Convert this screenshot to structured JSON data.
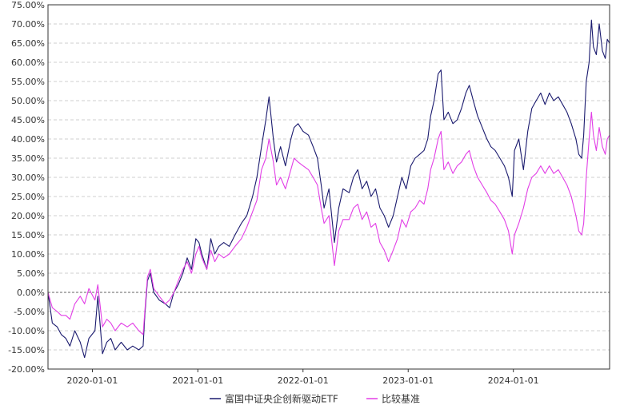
{
  "chart_data": {
    "type": "line",
    "title": "",
    "xlabel": "",
    "ylabel": "",
    "x_range": [
      "2019-07-31",
      "2024-11-30"
    ],
    "ylim": [
      -20,
      75
    ],
    "y_ticks": [
      -20,
      -15,
      -10,
      -5,
      0,
      5,
      10,
      15,
      20,
      25,
      30,
      35,
      40,
      45,
      50,
      55,
      60,
      65,
      70,
      75
    ],
    "y_tick_labels": [
      "-20.00%",
      "-15.00%",
      "-10.00%",
      "-5.00%",
      "0.00%",
      "5.00%",
      "10.00%",
      "15.00%",
      "20.00%",
      "25.00%",
      "30.00%",
      "35.00%",
      "40.00%",
      "45.00%",
      "50.00%",
      "55.00%",
      "60.00%",
      "65.00%",
      "70.00%",
      "75.00%"
    ],
    "x_ticks": [
      "2020-01-01",
      "2021-01-01",
      "2022-01-01",
      "2023-01-01",
      "2024-01-01"
    ],
    "grid": true,
    "legend_position": "bottom-center",
    "series": [
      {
        "name": "富国中证央企创新驱动ETF",
        "color": "#1a1a6e",
        "points": [
          [
            "2019-07-31",
            0
          ],
          [
            "2019-08-15",
            -8
          ],
          [
            "2019-09-01",
            -9
          ],
          [
            "2019-09-15",
            -11
          ],
          [
            "2019-10-01",
            -12
          ],
          [
            "2019-10-15",
            -14
          ],
          [
            "2019-11-01",
            -10
          ],
          [
            "2019-11-20",
            -13
          ],
          [
            "2019-12-05",
            -17
          ],
          [
            "2019-12-20",
            -12
          ],
          [
            "2020-01-10",
            -10
          ],
          [
            "2020-01-20",
            -1
          ],
          [
            "2020-02-05",
            -16
          ],
          [
            "2020-02-20",
            -13
          ],
          [
            "2020-03-05",
            -12
          ],
          [
            "2020-03-20",
            -15
          ],
          [
            "2020-04-10",
            -13
          ],
          [
            "2020-05-01",
            -15
          ],
          [
            "2020-05-20",
            -14
          ],
          [
            "2020-06-10",
            -15
          ],
          [
            "2020-06-25",
            -14
          ],
          [
            "2020-07-01",
            -6
          ],
          [
            "2020-07-10",
            3
          ],
          [
            "2020-07-20",
            5
          ],
          [
            "2020-08-01",
            0
          ],
          [
            "2020-08-20",
            -2
          ],
          [
            "2020-09-10",
            -3
          ],
          [
            "2020-09-25",
            -4
          ],
          [
            "2020-10-10",
            0
          ],
          [
            "2020-10-25",
            2
          ],
          [
            "2020-11-10",
            5
          ],
          [
            "2020-11-25",
            9
          ],
          [
            "2020-12-10",
            6
          ],
          [
            "2020-12-25",
            14
          ],
          [
            "2021-01-05",
            13
          ],
          [
            "2021-01-15",
            10
          ],
          [
            "2021-02-01",
            6
          ],
          [
            "2021-02-15",
            14
          ],
          [
            "2021-03-01",
            10
          ],
          [
            "2021-03-15",
            12
          ],
          [
            "2021-04-01",
            13
          ],
          [
            "2021-04-20",
            12
          ],
          [
            "2021-05-10",
            15
          ],
          [
            "2021-06-01",
            18
          ],
          [
            "2021-06-20",
            20
          ],
          [
            "2021-07-10",
            25
          ],
          [
            "2021-07-25",
            30
          ],
          [
            "2021-08-10",
            38
          ],
          [
            "2021-08-25",
            45
          ],
          [
            "2021-09-05",
            51
          ],
          [
            "2021-09-20",
            40
          ],
          [
            "2021-10-01",
            34
          ],
          [
            "2021-10-15",
            38
          ],
          [
            "2021-11-01",
            33
          ],
          [
            "2021-11-20",
            40
          ],
          [
            "2021-12-01",
            43
          ],
          [
            "2021-12-15",
            44
          ],
          [
            "2022-01-01",
            42
          ],
          [
            "2022-01-20",
            41
          ],
          [
            "2022-02-05",
            38
          ],
          [
            "2022-02-20",
            35
          ],
          [
            "2022-03-05",
            28
          ],
          [
            "2022-03-15",
            22
          ],
          [
            "2022-04-01",
            27
          ],
          [
            "2022-04-20",
            13
          ],
          [
            "2022-05-05",
            22
          ],
          [
            "2022-05-20",
            27
          ],
          [
            "2022-06-10",
            26
          ],
          [
            "2022-06-25",
            30
          ],
          [
            "2022-07-10",
            32
          ],
          [
            "2022-07-25",
            27
          ],
          [
            "2022-08-10",
            29
          ],
          [
            "2022-08-25",
            25
          ],
          [
            "2022-09-10",
            27
          ],
          [
            "2022-09-25",
            22
          ],
          [
            "2022-10-10",
            20
          ],
          [
            "2022-10-25",
            17
          ],
          [
            "2022-11-10",
            20
          ],
          [
            "2022-11-25",
            25
          ],
          [
            "2022-12-10",
            30
          ],
          [
            "2022-12-25",
            27
          ],
          [
            "2023-01-10",
            33
          ],
          [
            "2023-01-25",
            35
          ],
          [
            "2023-02-10",
            36
          ],
          [
            "2023-02-25",
            37
          ],
          [
            "2023-03-10",
            40
          ],
          [
            "2023-03-20",
            46
          ],
          [
            "2023-04-01",
            50
          ],
          [
            "2023-04-15",
            57
          ],
          [
            "2023-04-25",
            58
          ],
          [
            "2023-05-05",
            45
          ],
          [
            "2023-05-20",
            47
          ],
          [
            "2023-06-05",
            44
          ],
          [
            "2023-06-20",
            45
          ],
          [
            "2023-07-05",
            48
          ],
          [
            "2023-07-20",
            52
          ],
          [
            "2023-08-01",
            54
          ],
          [
            "2023-08-15",
            50
          ],
          [
            "2023-08-30",
            46
          ],
          [
            "2023-09-15",
            43
          ],
          [
            "2023-10-01",
            40
          ],
          [
            "2023-10-15",
            38
          ],
          [
            "2023-10-30",
            37
          ],
          [
            "2023-11-15",
            35
          ],
          [
            "2023-12-01",
            33
          ],
          [
            "2023-12-15",
            30
          ],
          [
            "2023-12-28",
            25
          ],
          [
            "2024-01-05",
            37
          ],
          [
            "2024-01-20",
            40
          ],
          [
            "2024-02-05",
            32
          ],
          [
            "2024-02-20",
            42
          ],
          [
            "2024-03-05",
            48
          ],
          [
            "2024-03-20",
            50
          ],
          [
            "2024-04-05",
            52
          ],
          [
            "2024-04-20",
            49
          ],
          [
            "2024-05-05",
            52
          ],
          [
            "2024-05-20",
            50
          ],
          [
            "2024-06-05",
            51
          ],
          [
            "2024-06-20",
            49
          ],
          [
            "2024-07-05",
            47
          ],
          [
            "2024-07-20",
            44
          ],
          [
            "2024-08-05",
            40
          ],
          [
            "2024-08-15",
            36
          ],
          [
            "2024-08-25",
            35
          ],
          [
            "2024-09-01",
            41
          ],
          [
            "2024-09-10",
            55
          ],
          [
            "2024-09-20",
            60
          ],
          [
            "2024-09-28",
            71
          ],
          [
            "2024-10-05",
            64
          ],
          [
            "2024-10-15",
            62
          ],
          [
            "2024-10-25",
            70
          ],
          [
            "2024-11-05",
            63
          ],
          [
            "2024-11-15",
            61
          ],
          [
            "2024-11-22",
            66
          ],
          [
            "2024-11-30",
            65
          ]
        ]
      },
      {
        "name": "比较基准",
        "color": "#e23ee6",
        "points": [
          [
            "2019-07-31",
            0
          ],
          [
            "2019-08-15",
            -4
          ],
          [
            "2019-09-01",
            -5
          ],
          [
            "2019-09-15",
            -6
          ],
          [
            "2019-10-01",
            -6
          ],
          [
            "2019-10-15",
            -7
          ],
          [
            "2019-11-01",
            -3
          ],
          [
            "2019-11-20",
            -1
          ],
          [
            "2019-12-05",
            -3
          ],
          [
            "2019-12-20",
            1
          ],
          [
            "2020-01-10",
            -2
          ],
          [
            "2020-01-20",
            2
          ],
          [
            "2020-02-05",
            -9
          ],
          [
            "2020-02-20",
            -7
          ],
          [
            "2020-03-05",
            -8
          ],
          [
            "2020-03-20",
            -10
          ],
          [
            "2020-04-10",
            -8
          ],
          [
            "2020-05-01",
            -9
          ],
          [
            "2020-05-20",
            -8
          ],
          [
            "2020-06-10",
            -10
          ],
          [
            "2020-06-25",
            -11
          ],
          [
            "2020-07-01",
            -5
          ],
          [
            "2020-07-10",
            4
          ],
          [
            "2020-07-20",
            6
          ],
          [
            "2020-08-01",
            1
          ],
          [
            "2020-08-20",
            -1
          ],
          [
            "2020-09-10",
            -3
          ],
          [
            "2020-09-25",
            -2
          ],
          [
            "2020-10-10",
            0
          ],
          [
            "2020-10-25",
            3
          ],
          [
            "2020-11-10",
            6
          ],
          [
            "2020-11-25",
            8
          ],
          [
            "2020-12-10",
            5
          ],
          [
            "2020-12-25",
            10
          ],
          [
            "2021-01-05",
            12
          ],
          [
            "2021-01-15",
            9
          ],
          [
            "2021-02-01",
            6
          ],
          [
            "2021-02-15",
            11
          ],
          [
            "2021-03-01",
            8
          ],
          [
            "2021-03-15",
            10
          ],
          [
            "2021-04-01",
            9
          ],
          [
            "2021-04-20",
            10
          ],
          [
            "2021-05-10",
            12
          ],
          [
            "2021-06-01",
            14
          ],
          [
            "2021-06-20",
            17
          ],
          [
            "2021-07-10",
            21
          ],
          [
            "2021-07-25",
            24
          ],
          [
            "2021-08-10",
            32
          ],
          [
            "2021-08-25",
            35
          ],
          [
            "2021-09-05",
            40
          ],
          [
            "2021-09-20",
            34
          ],
          [
            "2021-10-01",
            28
          ],
          [
            "2021-10-15",
            30
          ],
          [
            "2021-11-01",
            27
          ],
          [
            "2021-11-20",
            32
          ],
          [
            "2021-12-01",
            35
          ],
          [
            "2021-12-15",
            34
          ],
          [
            "2022-01-01",
            33
          ],
          [
            "2022-01-20",
            32
          ],
          [
            "2022-02-05",
            30
          ],
          [
            "2022-02-20",
            28
          ],
          [
            "2022-03-05",
            22
          ],
          [
            "2022-03-15",
            18
          ],
          [
            "2022-04-01",
            20
          ],
          [
            "2022-04-20",
            7
          ],
          [
            "2022-05-05",
            16
          ],
          [
            "2022-05-20",
            19
          ],
          [
            "2022-06-10",
            19
          ],
          [
            "2022-06-25",
            22
          ],
          [
            "2022-07-10",
            23
          ],
          [
            "2022-07-25",
            19
          ],
          [
            "2022-08-10",
            21
          ],
          [
            "2022-08-25",
            17
          ],
          [
            "2022-09-10",
            18
          ],
          [
            "2022-09-25",
            13
          ],
          [
            "2022-10-10",
            11
          ],
          [
            "2022-10-25",
            8
          ],
          [
            "2022-11-10",
            11
          ],
          [
            "2022-11-25",
            14
          ],
          [
            "2022-12-10",
            19
          ],
          [
            "2022-12-25",
            17
          ],
          [
            "2023-01-10",
            21
          ],
          [
            "2023-01-25",
            22
          ],
          [
            "2023-02-10",
            24
          ],
          [
            "2023-02-25",
            23
          ],
          [
            "2023-03-10",
            27
          ],
          [
            "2023-03-20",
            32
          ],
          [
            "2023-04-01",
            35
          ],
          [
            "2023-04-15",
            40
          ],
          [
            "2023-04-25",
            42
          ],
          [
            "2023-05-05",
            32
          ],
          [
            "2023-05-20",
            34
          ],
          [
            "2023-06-05",
            31
          ],
          [
            "2023-06-20",
            33
          ],
          [
            "2023-07-05",
            34
          ],
          [
            "2023-07-20",
            36
          ],
          [
            "2023-08-01",
            37
          ],
          [
            "2023-08-15",
            33
          ],
          [
            "2023-08-30",
            30
          ],
          [
            "2023-09-15",
            28
          ],
          [
            "2023-10-01",
            26
          ],
          [
            "2023-10-15",
            24
          ],
          [
            "2023-10-30",
            23
          ],
          [
            "2023-11-15",
            21
          ],
          [
            "2023-12-01",
            19
          ],
          [
            "2023-12-15",
            16
          ],
          [
            "2023-12-28",
            10
          ],
          [
            "2024-01-05",
            15
          ],
          [
            "2024-01-20",
            18
          ],
          [
            "2024-02-05",
            22
          ],
          [
            "2024-02-20",
            27
          ],
          [
            "2024-03-05",
            30
          ],
          [
            "2024-03-20",
            31
          ],
          [
            "2024-04-05",
            33
          ],
          [
            "2024-04-20",
            31
          ],
          [
            "2024-05-05",
            33
          ],
          [
            "2024-05-20",
            31
          ],
          [
            "2024-06-05",
            32
          ],
          [
            "2024-06-20",
            30
          ],
          [
            "2024-07-05",
            28
          ],
          [
            "2024-07-20",
            25
          ],
          [
            "2024-08-05",
            20
          ],
          [
            "2024-08-15",
            16
          ],
          [
            "2024-08-25",
            15
          ],
          [
            "2024-09-01",
            18
          ],
          [
            "2024-09-10",
            30
          ],
          [
            "2024-09-20",
            40
          ],
          [
            "2024-09-28",
            47
          ],
          [
            "2024-10-05",
            41
          ],
          [
            "2024-10-15",
            37
          ],
          [
            "2024-10-25",
            43
          ],
          [
            "2024-11-05",
            38
          ],
          [
            "2024-11-15",
            36
          ],
          [
            "2024-11-22",
            40
          ],
          [
            "2024-11-30",
            41
          ]
        ]
      }
    ]
  }
}
